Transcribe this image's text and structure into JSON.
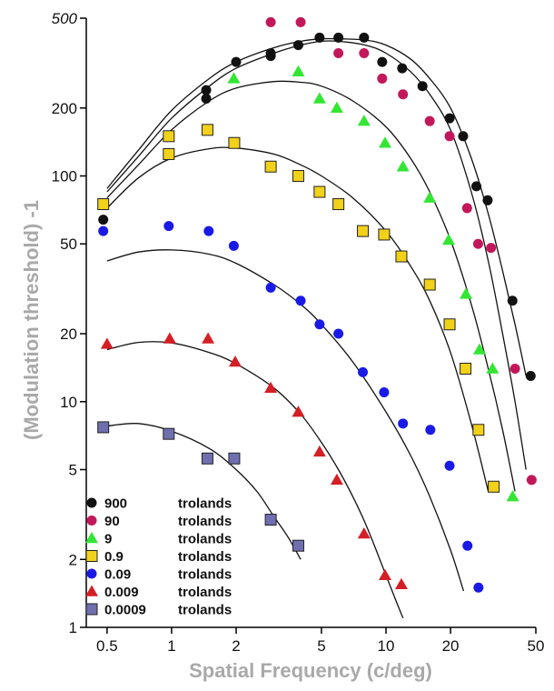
{
  "chart_data": {
    "type": "scatter",
    "title": "",
    "xlabel": "Spatial Frequency (c/deg)",
    "ylabel": "(Modulation threshold) -1",
    "x_scale": "log",
    "y_scale": "log",
    "xlim": [
      0.4,
      50
    ],
    "ylim": [
      1,
      500
    ],
    "x_ticks": [
      0.5,
      1,
      2,
      5,
      10,
      20,
      50
    ],
    "x_tick_labels": [
      "0.5",
      "1",
      "2",
      "5",
      "10",
      "20",
      "50"
    ],
    "y_ticks": [
      1,
      2,
      5,
      10,
      20,
      50,
      100,
      200,
      500
    ],
    "y_tick_labels": [
      "1",
      "2",
      "5",
      "10",
      "20",
      "50",
      "100",
      "200",
      "500"
    ],
    "grid": false,
    "legend_position": "bottom-left",
    "series": [
      {
        "name": "900",
        "unit": "trolands",
        "marker": "circle",
        "color": "#111111",
        "points": [
          [
            0.48,
            64
          ],
          [
            1.45,
            240
          ],
          [
            1.45,
            220
          ],
          [
            2.0,
            320
          ],
          [
            2.9,
            340
          ],
          [
            2.9,
            350
          ],
          [
            3.9,
            380
          ],
          [
            4.9,
            410
          ],
          [
            6.0,
            410
          ],
          [
            7.9,
            410
          ],
          [
            9.6,
            320
          ],
          [
            11.9,
            300
          ],
          [
            14.8,
            250
          ],
          [
            19.8,
            180
          ],
          [
            22.9,
            150
          ],
          [
            26.4,
            90
          ],
          [
            29.8,
            78
          ],
          [
            38.9,
            28
          ],
          [
            47.3,
            13
          ]
        ]
      },
      {
        "name": "90",
        "unit": "trolands",
        "marker": "circle",
        "color": "#c2185b",
        "points": [
          [
            2.9,
            480
          ],
          [
            4.0,
            480
          ],
          [
            6.0,
            350
          ],
          [
            7.9,
            350
          ],
          [
            9.6,
            270
          ],
          [
            12.0,
            230
          ],
          [
            16.0,
            175
          ],
          [
            19.8,
            150
          ],
          [
            23.9,
            72
          ],
          [
            26.9,
            50
          ],
          [
            30.9,
            48
          ],
          [
            40.0,
            14
          ],
          [
            47.8,
            4.5
          ]
        ]
      },
      {
        "name": "9",
        "unit": "trolands",
        "marker": "triangle",
        "color": "#33e633",
        "points": [
          [
            1.95,
            270
          ],
          [
            3.9,
            290
          ],
          [
            4.9,
            220
          ],
          [
            5.9,
            200
          ],
          [
            7.9,
            175
          ],
          [
            9.9,
            140
          ],
          [
            12.0,
            110
          ],
          [
            16.0,
            80
          ],
          [
            19.6,
            52
          ],
          [
            23.6,
            30
          ],
          [
            27.3,
            17
          ],
          [
            31.4,
            14
          ],
          [
            39.0,
            3.8
          ]
        ]
      },
      {
        "name": "0.9",
        "unit": "trolands",
        "marker": "square",
        "color": "#f2d11a",
        "points": [
          [
            0.48,
            75
          ],
          [
            0.97,
            150
          ],
          [
            0.97,
            125
          ],
          [
            1.47,
            160
          ],
          [
            1.96,
            140
          ],
          [
            2.9,
            110
          ],
          [
            3.9,
            100
          ],
          [
            4.9,
            85
          ],
          [
            6.0,
            75
          ],
          [
            7.8,
            57
          ],
          [
            9.8,
            55
          ],
          [
            11.8,
            44
          ],
          [
            16.0,
            33
          ],
          [
            19.8,
            22
          ],
          [
            23.5,
            14
          ],
          [
            27.0,
            7.5
          ],
          [
            31.8,
            4.2
          ]
        ]
      },
      {
        "name": "0.09",
        "unit": "trolands",
        "marker": "circle",
        "color": "#1a1ae6",
        "points": [
          [
            0.48,
            57
          ],
          [
            0.97,
            60
          ],
          [
            1.49,
            57
          ],
          [
            1.95,
            49
          ],
          [
            2.9,
            32
          ],
          [
            4.0,
            28
          ],
          [
            4.9,
            22
          ],
          [
            6.0,
            20
          ],
          [
            7.8,
            13.5
          ],
          [
            9.8,
            11
          ],
          [
            12.0,
            8
          ],
          [
            16.1,
            7.5
          ],
          [
            19.8,
            5.2
          ],
          [
            24.0,
            2.3
          ],
          [
            27.0,
            1.5
          ]
        ]
      },
      {
        "name": "0.009",
        "unit": "trolands",
        "marker": "triangle",
        "color": "#d41f26",
        "points": [
          [
            0.5,
            18
          ],
          [
            0.98,
            19
          ],
          [
            1.48,
            19
          ],
          [
            1.98,
            15
          ],
          [
            2.9,
            11.5
          ],
          [
            3.9,
            9
          ],
          [
            4.9,
            6
          ],
          [
            5.9,
            4.5
          ],
          [
            7.9,
            2.6
          ],
          [
            9.9,
            1.7
          ],
          [
            11.8,
            1.55
          ]
        ]
      },
      {
        "name": "0.0009",
        "unit": "trolands",
        "marker": "square",
        "color": "#6f6fb0",
        "points": [
          [
            0.48,
            7.7
          ],
          [
            0.97,
            7.2
          ],
          [
            1.47,
            5.6
          ],
          [
            1.96,
            5.6
          ],
          [
            2.9,
            3
          ],
          [
            3.9,
            2.3
          ]
        ]
      }
    ],
    "fitted_curves": [
      {
        "series": "900",
        "x": [
          0.5,
          0.7,
          1,
          1.5,
          2,
          3,
          4,
          5,
          6,
          8,
          10,
          13,
          16,
          20,
          25,
          30,
          35,
          40,
          45
        ],
        "y": [
          88,
          130,
          195,
          270,
          320,
          370,
          395,
          405,
          405,
          400,
          380,
          330,
          270,
          200,
          120,
          68,
          38,
          22,
          13
        ]
      },
      {
        "series": "90",
        "x": [
          0.5,
          0.7,
          1,
          1.5,
          2,
          3,
          4,
          5,
          6,
          8,
          10,
          13,
          16,
          20,
          25,
          30,
          35,
          40,
          45
        ],
        "y": [
          85,
          122,
          180,
          250,
          300,
          350,
          380,
          395,
          395,
          380,
          350,
          290,
          230,
          160,
          85,
          42,
          20,
          10,
          5
        ]
      },
      {
        "series": "9",
        "x": [
          0.5,
          0.7,
          1,
          1.5,
          2,
          3,
          4,
          5,
          7,
          10,
          13,
          16,
          20,
          25,
          30,
          35,
          40
        ],
        "y": [
          80,
          112,
          160,
          215,
          245,
          262,
          260,
          250,
          215,
          165,
          120,
          85,
          52,
          27,
          14,
          7.5,
          4
        ]
      },
      {
        "series": "0.9",
        "x": [
          0.5,
          0.7,
          1,
          1.5,
          2,
          3,
          4,
          5,
          7,
          10,
          13,
          16,
          20,
          25,
          30
        ],
        "y": [
          72,
          98,
          120,
          132,
          133,
          125,
          112,
          100,
          80,
          57,
          40,
          28,
          16.5,
          8,
          4
        ]
      },
      {
        "series": "0.09",
        "x": [
          0.5,
          0.7,
          1,
          1.5,
          2,
          3,
          4,
          5,
          7,
          10,
          13,
          16,
          20,
          23,
          27
        ],
        "y": [
          42,
          46,
          47,
          45,
          41,
          33,
          27,
          22,
          15,
          9,
          5.8,
          3.8,
          2.2,
          1.45,
          0.9
        ]
      },
      {
        "series": "0.009",
        "x": [
          0.5,
          0.7,
          1,
          1.5,
          2,
          3,
          4,
          5,
          6,
          7,
          8,
          9,
          10,
          11,
          12
        ],
        "y": [
          17,
          18.3,
          18.2,
          16.5,
          14.7,
          11.5,
          8.8,
          6.6,
          5,
          3.8,
          2.9,
          2.2,
          1.7,
          1.35,
          1.1
        ]
      },
      {
        "series": "0.0009",
        "x": [
          0.5,
          0.7,
          1,
          1.5,
          2,
          2.5,
          3,
          3.5,
          4
        ],
        "y": [
          7.8,
          8.0,
          7.4,
          6.2,
          5.0,
          4.0,
          3.1,
          2.5,
          2.0
        ]
      }
    ]
  }
}
